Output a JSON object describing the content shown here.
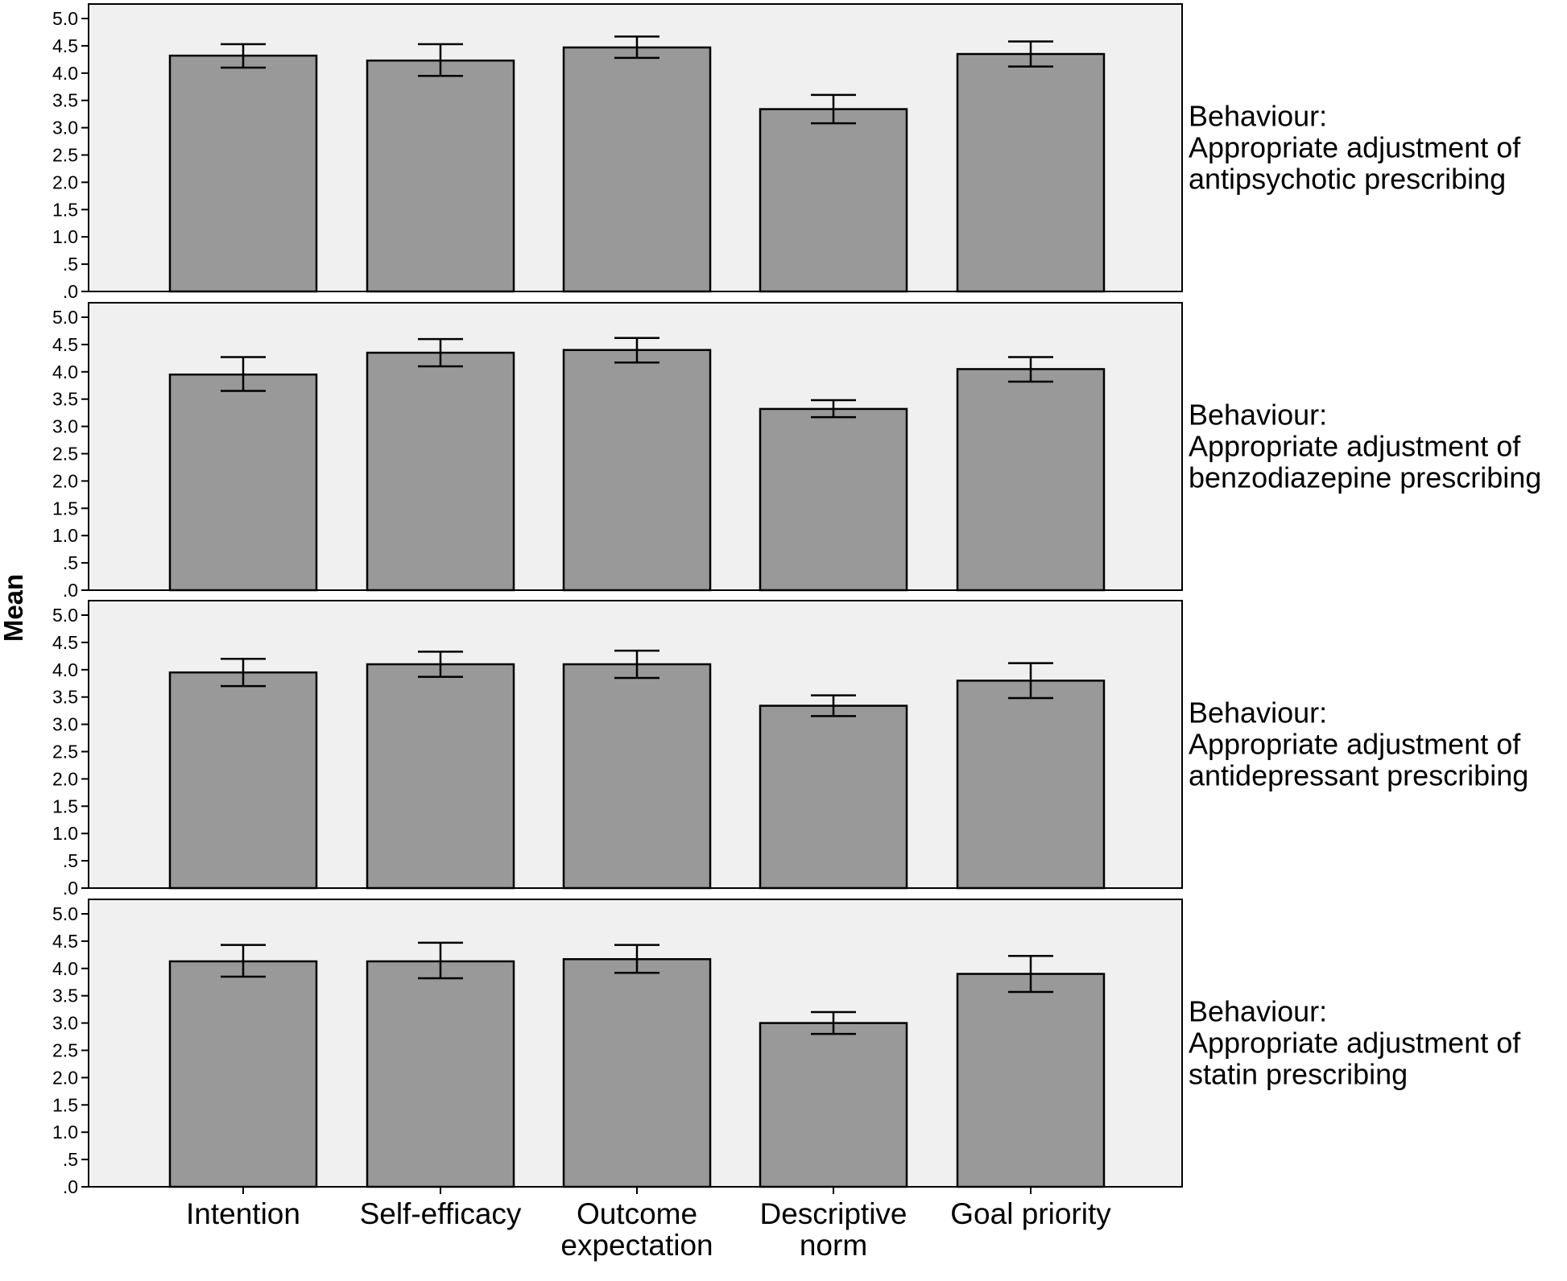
{
  "chart_data": {
    "type": "bar",
    "ylabel": "Mean",
    "ylim": [
      0,
      5
    ],
    "y_ticks": [
      ".0",
      ".5",
      "1.0",
      "1.5",
      "2.0",
      "2.5",
      "3.0",
      "3.5",
      "4.0",
      "4.5",
      "5.0"
    ],
    "categories": [
      [
        "Intention"
      ],
      [
        "Self-efficacy"
      ],
      [
        "Outcome",
        "expectation"
      ],
      [
        "Descriptive",
        "norm"
      ],
      [
        "Goal priority"
      ]
    ],
    "grid": false,
    "legend": "none",
    "colors": {
      "bar": "#999999",
      "panel": "#f0f0f0",
      "border": "#000000"
    },
    "panels": [
      {
        "label": [
          "Behaviour:",
          "Appropriate adjustment of",
          "antipsychotic prescribing"
        ],
        "values": [
          4.32,
          4.23,
          4.47,
          3.34,
          4.35
        ],
        "error_low": [
          4.1,
          3.95,
          4.28,
          3.08,
          4.12
        ],
        "error_high": [
          4.53,
          4.53,
          4.67,
          3.6,
          4.58
        ]
      },
      {
        "label": [
          "Behaviour:",
          "Appropriate adjustment of",
          "benzodiazepine prescribing"
        ],
        "values": [
          3.95,
          4.35,
          4.4,
          3.32,
          4.05
        ],
        "error_low": [
          3.65,
          4.1,
          4.17,
          3.17,
          3.82
        ],
        "error_high": [
          4.27,
          4.6,
          4.62,
          3.48,
          4.27
        ]
      },
      {
        "label": [
          "Behaviour:",
          "Appropriate adjustment of",
          "antidepressant prescribing"
        ],
        "values": [
          3.95,
          4.1,
          4.1,
          3.34,
          3.8
        ],
        "error_low": [
          3.7,
          3.87,
          3.85,
          3.15,
          3.48
        ],
        "error_high": [
          4.2,
          4.33,
          4.35,
          3.53,
          4.12
        ]
      },
      {
        "label": [
          "Behaviour:",
          "Appropriate adjustment of",
          "statin prescribing"
        ],
        "values": [
          4.13,
          4.13,
          4.17,
          3.0,
          3.9
        ],
        "error_low": [
          3.85,
          3.82,
          3.92,
          2.8,
          3.57
        ],
        "error_high": [
          4.43,
          4.47,
          4.43,
          3.2,
          4.23
        ]
      }
    ]
  }
}
